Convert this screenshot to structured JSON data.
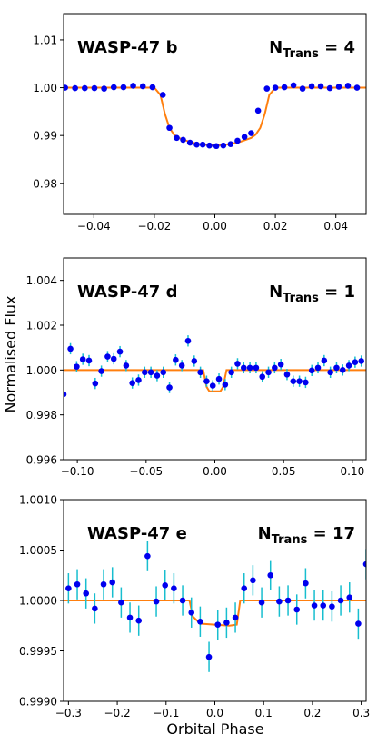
{
  "figure": {
    "ylabel": "Normalised Flux",
    "xlabel": "Orbital Phase"
  },
  "colors": {
    "model": "#ff7f0e",
    "point": "#0000ee",
    "errorbar": "#17becf"
  },
  "chart_data": [
    {
      "type": "scatter",
      "title": "WASP-47 b",
      "annotation_main": "N",
      "annotation_sub": "Trans",
      "annotation_rest": " = 4",
      "xlim": [
        -0.05,
        0.05
      ],
      "ylim": [
        0.9735,
        1.0155
      ],
      "xticks": [
        -0.04,
        -0.02,
        0.0,
        0.02,
        0.04
      ],
      "xticklabels": [
        "−0.04",
        "−0.02",
        "0.00",
        "0.02",
        "0.04"
      ],
      "yticks": [
        0.98,
        0.99,
        1.0,
        1.01
      ],
      "yticklabels": [
        "0.98",
        "0.99",
        "1.00",
        "1.01"
      ],
      "grid": false,
      "errorbars": false,
      "points": [
        {
          "x": -0.0495,
          "y": 1.0
        },
        {
          "x": -0.0462,
          "y": 0.9999
        },
        {
          "x": -0.043,
          "y": 0.9999
        },
        {
          "x": -0.0398,
          "y": 0.9999
        },
        {
          "x": -0.0366,
          "y": 0.9998
        },
        {
          "x": -0.0334,
          "y": 1.0001
        },
        {
          "x": -0.0302,
          "y": 1.0001
        },
        {
          "x": -0.027,
          "y": 1.0004
        },
        {
          "x": -0.0238,
          "y": 1.0003
        },
        {
          "x": -0.0206,
          "y": 1.0001
        },
        {
          "x": -0.0172,
          "y": 0.9985
        },
        {
          "x": -0.015,
          "y": 0.9916
        },
        {
          "x": -0.0126,
          "y": 0.9895
        },
        {
          "x": -0.0105,
          "y": 0.9891
        },
        {
          "x": -0.0082,
          "y": 0.9885
        },
        {
          "x": -0.006,
          "y": 0.9881
        },
        {
          "x": -0.004,
          "y": 0.9881
        },
        {
          "x": -0.0018,
          "y": 0.9879
        },
        {
          "x": 0.0005,
          "y": 0.9878
        },
        {
          "x": 0.0028,
          "y": 0.9879
        },
        {
          "x": 0.0052,
          "y": 0.9882
        },
        {
          "x": 0.0075,
          "y": 0.9889
        },
        {
          "x": 0.0098,
          "y": 0.9897
        },
        {
          "x": 0.012,
          "y": 0.9905
        },
        {
          "x": 0.0143,
          "y": 0.9952
        },
        {
          "x": 0.0172,
          "y": 0.9998
        },
        {
          "x": 0.02,
          "y": 1.0
        },
        {
          "x": 0.023,
          "y": 1.0001
        },
        {
          "x": 0.026,
          "y": 1.0005
        },
        {
          "x": 0.029,
          "y": 0.9998
        },
        {
          "x": 0.032,
          "y": 1.0003
        },
        {
          "x": 0.035,
          "y": 1.0003
        },
        {
          "x": 0.038,
          "y": 0.9999
        },
        {
          "x": 0.041,
          "y": 1.0002
        },
        {
          "x": 0.044,
          "y": 1.0004
        },
        {
          "x": 0.047,
          "y": 1.0
        }
      ],
      "model": {
        "x": [
          -0.05,
          -0.02,
          -0.018,
          -0.0165,
          -0.015,
          -0.0135,
          -0.012,
          -0.008,
          -0.004,
          0.0,
          0.004,
          0.008,
          0.012,
          0.0135,
          0.015,
          0.0165,
          0.018,
          0.02,
          0.05
        ],
        "y": [
          1.0,
          1.0,
          0.9985,
          0.9945,
          0.9916,
          0.9902,
          0.9895,
          0.9886,
          0.9881,
          0.9879,
          0.9881,
          0.9886,
          0.9895,
          0.9902,
          0.9916,
          0.9945,
          0.9985,
          1.0,
          1.0
        ]
      }
    },
    {
      "type": "scatter",
      "title": "WASP-47 d",
      "annotation_main": "N",
      "annotation_sub": "Trans",
      "annotation_rest": " = 1",
      "xlim": [
        -0.11,
        0.11
      ],
      "ylim": [
        0.996,
        1.005
      ],
      "xticks": [
        -0.1,
        -0.05,
        0.0,
        0.05,
        0.1
      ],
      "xticklabels": [
        "−0.10",
        "−0.05",
        "0.00",
        "0.05",
        "0.10"
      ],
      "yticks": [
        0.996,
        0.998,
        1.0,
        1.002,
        1.004
      ],
      "yticklabels": [
        "0.996",
        "0.998",
        "1.000",
        "1.002",
        "1.004"
      ],
      "grid": false,
      "errorbars": true,
      "points": [
        {
          "x": -0.11,
          "y": 0.99892,
          "e": 0.00025
        },
        {
          "x": -0.105,
          "y": 1.00095,
          "e": 0.00025
        },
        {
          "x": -0.1005,
          "y": 1.00015,
          "e": 0.00025
        },
        {
          "x": -0.096,
          "y": 1.00048,
          "e": 0.00025
        },
        {
          "x": -0.0915,
          "y": 1.00042,
          "e": 0.00025
        },
        {
          "x": -0.087,
          "y": 0.9994,
          "e": 0.00025
        },
        {
          "x": -0.0825,
          "y": 0.99995,
          "e": 0.00025
        },
        {
          "x": -0.078,
          "y": 1.0006,
          "e": 0.00025
        },
        {
          "x": -0.0735,
          "y": 1.0005,
          "e": 0.00025
        },
        {
          "x": -0.069,
          "y": 1.00082,
          "e": 0.00025
        },
        {
          "x": -0.0645,
          "y": 1.0002,
          "e": 0.00025
        },
        {
          "x": -0.06,
          "y": 0.99942,
          "e": 0.00025
        },
        {
          "x": -0.0555,
          "y": 0.99955,
          "e": 0.00025
        },
        {
          "x": -0.051,
          "y": 0.9999,
          "e": 0.00025
        },
        {
          "x": -0.0465,
          "y": 0.9999,
          "e": 0.00025
        },
        {
          "x": -0.042,
          "y": 0.99975,
          "e": 0.00025
        },
        {
          "x": -0.0375,
          "y": 0.9999,
          "e": 0.00025
        },
        {
          "x": -0.033,
          "y": 0.99922,
          "e": 0.00025
        },
        {
          "x": -0.0285,
          "y": 1.00045,
          "e": 0.00025
        },
        {
          "x": -0.024,
          "y": 1.0002,
          "e": 0.00025
        },
        {
          "x": -0.0195,
          "y": 1.0013,
          "e": 0.00025
        },
        {
          "x": -0.015,
          "y": 1.0004,
          "e": 0.00025
        },
        {
          "x": -0.0105,
          "y": 0.9999,
          "e": 0.00025
        },
        {
          "x": -0.006,
          "y": 0.9995,
          "e": 0.00025
        },
        {
          "x": -0.0015,
          "y": 0.9993,
          "e": 0.00025
        },
        {
          "x": 0.003,
          "y": 0.9996,
          "e": 0.00025
        },
        {
          "x": 0.0075,
          "y": 0.99935,
          "e": 0.00025
        },
        {
          "x": 0.012,
          "y": 0.9999,
          "e": 0.00025
        },
        {
          "x": 0.0165,
          "y": 1.00028,
          "e": 0.00025
        },
        {
          "x": 0.021,
          "y": 1.0001,
          "e": 0.00025
        },
        {
          "x": 0.0255,
          "y": 1.0001,
          "e": 0.00025
        },
        {
          "x": 0.03,
          "y": 1.0001,
          "e": 0.00025
        },
        {
          "x": 0.0345,
          "y": 0.9997,
          "e": 0.00025
        },
        {
          "x": 0.039,
          "y": 0.9999,
          "e": 0.00025
        },
        {
          "x": 0.0435,
          "y": 1.0001,
          "e": 0.00025
        },
        {
          "x": 0.048,
          "y": 1.00025,
          "e": 0.00025
        },
        {
          "x": 0.0525,
          "y": 0.9998,
          "e": 0.00025
        },
        {
          "x": 0.057,
          "y": 0.9995,
          "e": 0.00025
        },
        {
          "x": 0.0615,
          "y": 0.9995,
          "e": 0.00025
        },
        {
          "x": 0.066,
          "y": 0.99945,
          "e": 0.00025
        },
        {
          "x": 0.0705,
          "y": 0.99998,
          "e": 0.00025
        },
        {
          "x": 0.075,
          "y": 1.0001,
          "e": 0.00025
        },
        {
          "x": 0.0795,
          "y": 1.00042,
          "e": 0.00025
        },
        {
          "x": 0.084,
          "y": 0.9999,
          "e": 0.00025
        },
        {
          "x": 0.0885,
          "y": 1.0001,
          "e": 0.00025
        },
        {
          "x": 0.093,
          "y": 1.0,
          "e": 0.00025
        },
        {
          "x": 0.0975,
          "y": 1.0002,
          "e": 0.00025
        },
        {
          "x": 0.102,
          "y": 1.00035,
          "e": 0.00025
        },
        {
          "x": 0.1065,
          "y": 1.0004,
          "e": 0.00025
        }
      ],
      "model": {
        "x": [
          -0.11,
          -0.0085,
          -0.006,
          -0.004,
          0.004,
          0.006,
          0.0085,
          0.11
        ],
        "y": [
          1.0,
          1.0,
          0.99925,
          0.99905,
          0.99905,
          0.99925,
          1.0,
          1.0
        ]
      }
    },
    {
      "type": "scatter",
      "title": "WASP-47 e",
      "annotation_main": "N",
      "annotation_sub": "Trans",
      "annotation_rest": " = 17",
      "xlim": [
        -0.31,
        0.31
      ],
      "ylim": [
        0.999,
        1.001
      ],
      "xticks": [
        -0.3,
        -0.2,
        -0.1,
        0.0,
        0.1,
        0.2,
        0.3
      ],
      "xticklabels": [
        "−0.3",
        "−0.2",
        "−0.1",
        "0.0",
        "0.1",
        "0.2",
        "0.3"
      ],
      "yticks": [
        0.999,
        0.9995,
        1.0,
        1.0005,
        1.001
      ],
      "yticklabels": [
        "0.9990",
        "0.9995",
        "1.0000",
        "1.0005",
        "1.0010"
      ],
      "grid": false,
      "errorbars": true,
      "points": [
        {
          "x": -0.3,
          "y": 1.00012,
          "e": 0.00015
        },
        {
          "x": -0.282,
          "y": 1.00016,
          "e": 0.00015
        },
        {
          "x": -0.264,
          "y": 1.00007,
          "e": 0.00015
        },
        {
          "x": -0.246,
          "y": 0.99992,
          "e": 0.00015
        },
        {
          "x": -0.228,
          "y": 1.00016,
          "e": 0.00015
        },
        {
          "x": -0.21,
          "y": 1.00018,
          "e": 0.00015
        },
        {
          "x": -0.192,
          "y": 0.99998,
          "e": 0.00015
        },
        {
          "x": -0.174,
          "y": 0.99983,
          "e": 0.00015
        },
        {
          "x": -0.156,
          "y": 0.9998,
          "e": 0.00015
        },
        {
          "x": -0.138,
          "y": 1.00044,
          "e": 0.00015
        },
        {
          "x": -0.12,
          "y": 0.99999,
          "e": 0.00015
        },
        {
          "x": -0.102,
          "y": 1.00015,
          "e": 0.00015
        },
        {
          "x": -0.084,
          "y": 1.00012,
          "e": 0.00015
        },
        {
          "x": -0.066,
          "y": 1.0,
          "e": 0.00015
        },
        {
          "x": -0.048,
          "y": 0.99988,
          "e": 0.00015
        },
        {
          "x": -0.03,
          "y": 0.99979,
          "e": 0.00015
        },
        {
          "x": -0.012,
          "y": 0.99944,
          "e": 0.00015
        },
        {
          "x": 0.006,
          "y": 0.99976,
          "e": 0.00015
        },
        {
          "x": 0.024,
          "y": 0.99978,
          "e": 0.00015
        },
        {
          "x": 0.042,
          "y": 0.99983,
          "e": 0.00015
        },
        {
          "x": 0.06,
          "y": 1.00012,
          "e": 0.00015
        },
        {
          "x": 0.078,
          "y": 1.0002,
          "e": 0.00015
        },
        {
          "x": 0.096,
          "y": 0.99998,
          "e": 0.00015
        },
        {
          "x": 0.114,
          "y": 1.00025,
          "e": 0.00015
        },
        {
          "x": 0.132,
          "y": 0.99999,
          "e": 0.00015
        },
        {
          "x": 0.15,
          "y": 1.0,
          "e": 0.00015
        },
        {
          "x": 0.168,
          "y": 0.99991,
          "e": 0.00015
        },
        {
          "x": 0.186,
          "y": 1.00017,
          "e": 0.00015
        },
        {
          "x": 0.204,
          "y": 0.99995,
          "e": 0.00015
        },
        {
          "x": 0.222,
          "y": 0.99995,
          "e": 0.00015
        },
        {
          "x": 0.24,
          "y": 0.99994,
          "e": 0.00015
        },
        {
          "x": 0.258,
          "y": 1.0,
          "e": 0.00015
        },
        {
          "x": 0.276,
          "y": 1.00003,
          "e": 0.00015
        },
        {
          "x": 0.294,
          "y": 0.99977,
          "e": 0.00015
        },
        {
          "x": 0.31,
          "y": 1.00036,
          "e": 0.00015
        }
      ],
      "model": {
        "x": [
          -0.31,
          -0.052,
          -0.045,
          -0.03,
          0.03,
          0.045,
          0.052,
          0.31
        ],
        "y": [
          1.0,
          1.0,
          0.99984,
          0.99977,
          0.99975,
          0.99976,
          1.0,
          1.0
        ]
      }
    }
  ]
}
